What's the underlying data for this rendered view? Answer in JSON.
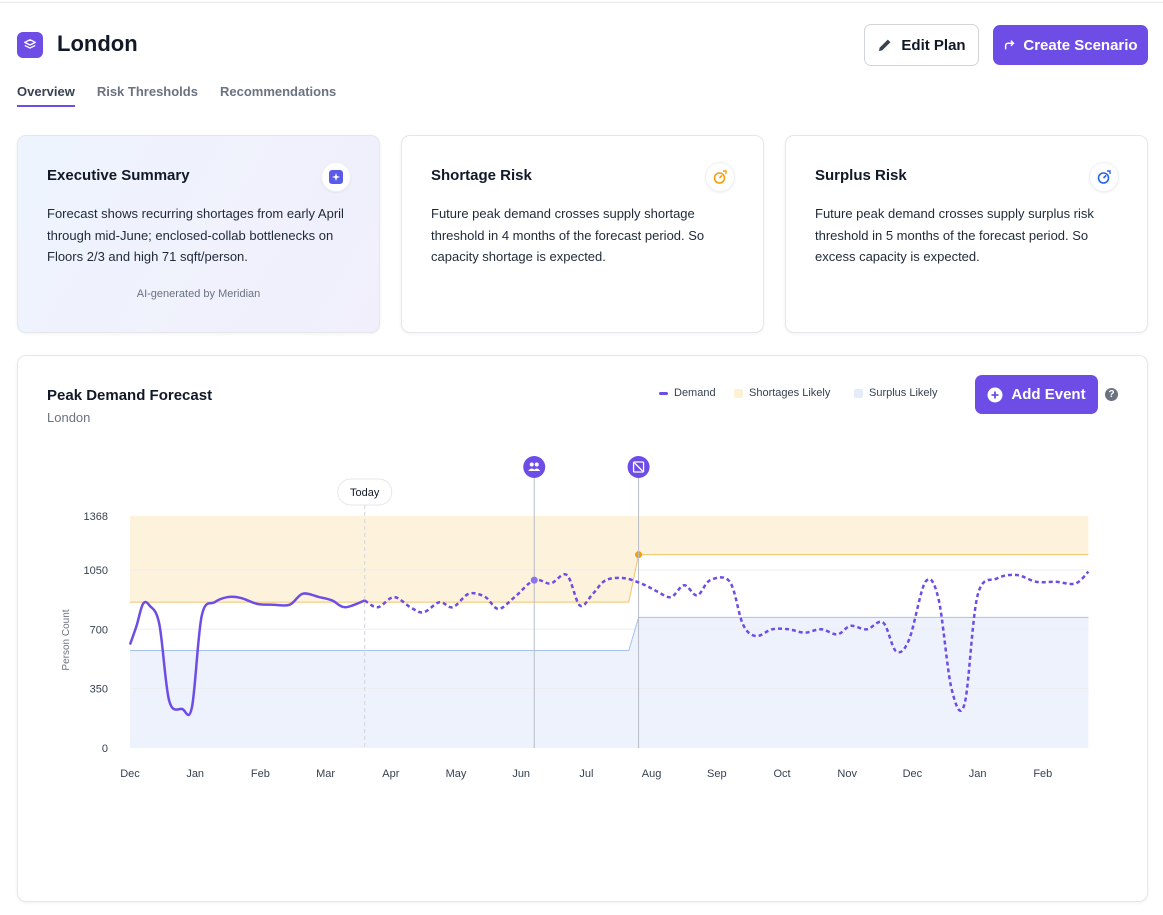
{
  "header": {
    "title": "London",
    "edit_label": "Edit Plan",
    "create_label": "Create Scenario"
  },
  "tabs": [
    {
      "label": "Overview",
      "active": true
    },
    {
      "label": "Risk Thresholds",
      "active": false
    },
    {
      "label": "Recommendations",
      "active": false
    }
  ],
  "cards": {
    "executive": {
      "title": "Executive Summary",
      "text": "Forecast shows recurring shortages from early April through mid-June; enclosed-collab bottlenecks on Floors 2/3 and high 71 sqft/person.",
      "footer": "AI-generated by Meridian",
      "icon": "sparkle-icon"
    },
    "shortage": {
      "title": "Shortage Risk",
      "text": "Future peak demand crosses supply shortage threshold in 4 months of the forecast period. So capacity shortage is expected.",
      "icon": "shortage-gauge-icon",
      "accent": "#f59e0b"
    },
    "surplus": {
      "title": "Surplus Risk",
      "text": "Future peak demand crosses supply surplus risk threshold in 5 months of the forecast period. So excess capacity is expected.",
      "icon": "surplus-gauge-icon",
      "accent": "#2563eb"
    }
  },
  "forecast": {
    "title": "Peak Demand Forecast",
    "subtitle": "London",
    "legend": {
      "demand": "Demand",
      "shortage": "Shortages Likely",
      "surplus": "Surplus Likely"
    },
    "add_event_label": "Add Event",
    "help": "?"
  },
  "chart_data": {
    "type": "line",
    "ylabel": "Person Count",
    "ylim": [
      0,
      1368
    ],
    "yticks": [
      0,
      350,
      700,
      1050,
      1368
    ],
    "xticks": [
      "Dec",
      "Jan",
      "Feb",
      "Mar",
      "Apr",
      "May",
      "Jun",
      "Jul",
      "Aug",
      "Sep",
      "Oct",
      "Nov",
      "Dec",
      "Jan",
      "Feb"
    ],
    "today_label": "Today",
    "today_index": 3.6,
    "events": [
      {
        "index": 6.2,
        "icon": "people-icon"
      },
      {
        "index": 7.8,
        "icon": "shrink-icon"
      }
    ],
    "shortage_threshold": {
      "before": 860,
      "after": 1140,
      "change_index": 7.8,
      "top": 1368
    },
    "surplus_threshold": {
      "before": 575,
      "after": 770,
      "change_index": 7.8
    },
    "colors": {
      "demand": "#6d4de6",
      "shortage": "#fdf3dc",
      "surplus": "#eef2fd",
      "shortage_line": "#f5c26b",
      "surplus_line": "#a8c1ee",
      "marker": "#f59e0b"
    },
    "forecast_start_index": 3.6,
    "demand_points": [
      [
        0.0,
        610
      ],
      [
        0.1,
        720
      ],
      [
        0.2,
        850
      ],
      [
        0.3,
        840
      ],
      [
        0.45,
        730
      ],
      [
        0.6,
        280
      ],
      [
        0.8,
        230
      ],
      [
        0.95,
        240
      ],
      [
        1.1,
        780
      ],
      [
        1.3,
        860
      ],
      [
        1.5,
        890
      ],
      [
        1.7,
        885
      ],
      [
        1.95,
        850
      ],
      [
        2.2,
        845
      ],
      [
        2.45,
        845
      ],
      [
        2.65,
        910
      ],
      [
        2.9,
        890
      ],
      [
        3.1,
        870
      ],
      [
        3.3,
        830
      ],
      [
        3.6,
        870
      ],
      [
        3.8,
        830
      ],
      [
        4.05,
        890
      ],
      [
        4.3,
        830
      ],
      [
        4.5,
        800
      ],
      [
        4.75,
        860
      ],
      [
        4.95,
        830
      ],
      [
        5.2,
        910
      ],
      [
        5.45,
        890
      ],
      [
        5.65,
        820
      ],
      [
        5.9,
        890
      ],
      [
        6.2,
        990
      ],
      [
        6.45,
        970
      ],
      [
        6.7,
        1020
      ],
      [
        6.9,
        840
      ],
      [
        7.1,
        910
      ],
      [
        7.3,
        990
      ],
      [
        7.6,
        1000
      ],
      [
        7.9,
        960
      ],
      [
        8.1,
        920
      ],
      [
        8.3,
        890
      ],
      [
        8.5,
        960
      ],
      [
        8.7,
        900
      ],
      [
        8.9,
        990
      ],
      [
        9.2,
        980
      ],
      [
        9.4,
        730
      ],
      [
        9.6,
        660
      ],
      [
        9.85,
        700
      ],
      [
        10.1,
        700
      ],
      [
        10.35,
        680
      ],
      [
        10.6,
        700
      ],
      [
        10.85,
        670
      ],
      [
        11.05,
        720
      ],
      [
        11.3,
        700
      ],
      [
        11.55,
        740
      ],
      [
        11.75,
        570
      ],
      [
        11.95,
        640
      ],
      [
        12.2,
        980
      ],
      [
        12.4,
        880
      ],
      [
        12.6,
        350
      ],
      [
        12.8,
        260
      ],
      [
        13.0,
        900
      ],
      [
        13.3,
        1000
      ],
      [
        13.6,
        1020
      ],
      [
        13.9,
        980
      ],
      [
        14.2,
        980
      ],
      [
        14.5,
        970
      ],
      [
        14.7,
        1040
      ]
    ]
  }
}
